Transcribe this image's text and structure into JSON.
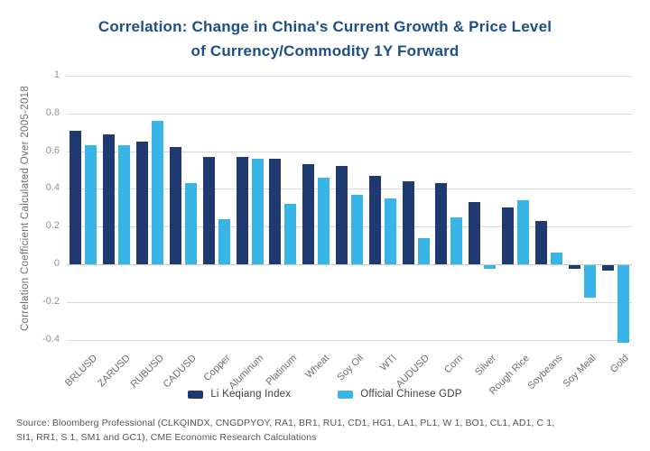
{
  "title": {
    "line1": "Correlation: Change in China's Current Growth & Price Level",
    "line2": "of Currency/Commodity 1Y Forward"
  },
  "colors": {
    "title": "#1B4E8A",
    "series1": "#1E3A70",
    "series2": "#38B4E6",
    "gridline": "#D9D9D9",
    "tick_text": "#909296",
    "axis_text": "#6D6E71",
    "source_text": "#55565A"
  },
  "chart_data": {
    "type": "bar",
    "title": "Correlation: Change in China's Current Growth & Price Level of Currency/Commodity 1Y Forward",
    "ylabel": "Correlation Coefficient Calculated Over 2005-2018",
    "xlabel": "",
    "ylim": [
      -0.44,
      1.0
    ],
    "grid": true,
    "legend_position": "bottom",
    "ytick_labels": [
      "1",
      "0.8",
      "0.6",
      "0.4",
      "0.2",
      "0",
      "-0.2",
      "-0.4"
    ],
    "categories": [
      "BRLUSD",
      "ZARUSD",
      "RUBUSD",
      "CADUSD",
      "Copper",
      "Aluminum",
      "Platinum",
      "Wheat",
      "Soy Oil",
      "WTI",
      "AUDUSD",
      "Corn",
      "Silver",
      "Rough Rice",
      "Soybeans",
      "Soy Meal",
      "Gold"
    ],
    "series": [
      {
        "name": "Li Keqiang Index",
        "color": "#1E3A70",
        "values": [
          0.71,
          0.69,
          0.65,
          0.62,
          0.57,
          0.57,
          0.56,
          0.53,
          0.52,
          0.47,
          0.44,
          0.43,
          0.33,
          0.3,
          0.23,
          -0.02,
          -0.03
        ]
      },
      {
        "name": "Official Chinese GDP",
        "color": "#38B4E6",
        "values": [
          0.63,
          0.63,
          0.76,
          0.43,
          0.24,
          0.56,
          0.32,
          0.46,
          0.37,
          0.35,
          0.14,
          0.25,
          -0.02,
          0.34,
          0.06,
          -0.17,
          -0.41
        ]
      }
    ]
  },
  "source": {
    "line1": "Source: Bloomberg Professional (CLKQINDX, CNGDPYOY, RA1, BR1, RU1, CD1, HG1, LA1, PL1, W 1, BO1, CL1, AD1, C 1,",
    "line2": "SI1, RR1, S 1, SM1 and GC1), CME Economic Research Calculations"
  }
}
